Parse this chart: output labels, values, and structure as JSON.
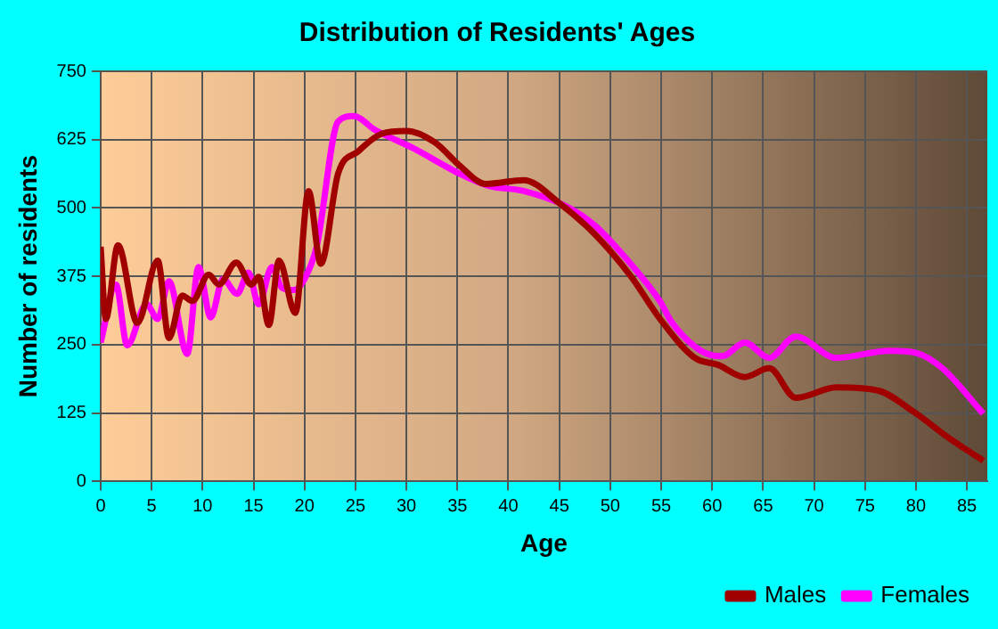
{
  "chart_data": {
    "type": "line",
    "title": "Distribution of Residents' Ages",
    "xlabel": "Age",
    "ylabel": "Number of residents",
    "xlim": [
      0,
      87
    ],
    "xticks": [
      0,
      5,
      10,
      15,
      20,
      25,
      30,
      35,
      40,
      45,
      50,
      55,
      60,
      65,
      70,
      75,
      80,
      85
    ],
    "ylim": [
      0,
      750
    ],
    "yticks": [
      0,
      125,
      250,
      375,
      500,
      625,
      750
    ],
    "grid": true,
    "legend": "bottom right",
    "marker": "none",
    "line_style": "solid",
    "series": [
      {
        "name": "Males",
        "color": "#a00000",
        "x": [
          0,
          0.5,
          1.7,
          3.6,
          5.6,
          6.7,
          8,
          9,
          10.6,
          11.6,
          13.3,
          14.8,
          15.5,
          16.5,
          17.5,
          19.1,
          20.4,
          21.6,
          23.3,
          25.3,
          27.6,
          30,
          32.8,
          35.2,
          37.8,
          41.5,
          45,
          48.5,
          52,
          54.9,
          58.3,
          60.6,
          63.2,
          65.6,
          68.2,
          72.2,
          76.3,
          79.8,
          83.2,
          86.6
        ],
        "values": [
          429,
          297,
          432,
          290,
          404,
          262,
          340,
          330,
          378,
          360,
          400,
          360,
          374,
          286,
          404,
          308,
          531,
          398,
          563,
          604,
          636,
          641,
          620,
          578,
          544,
          551,
          509,
          452,
          376,
          297,
          226,
          213,
          191,
          207,
          153,
          172,
          166,
          127,
          80,
          38
        ]
      },
      {
        "name": "Females",
        "color": "#ff00ff",
        "x": [
          0,
          1.5,
          2.6,
          4.5,
          5.6,
          6.7,
          8.5,
          9.6,
          10.8,
          12,
          13.4,
          14.5,
          15.5,
          16.8,
          17.8,
          19,
          20,
          21.2,
          23.3,
          24.8,
          27,
          30.6,
          35.2,
          38,
          41.5,
          45.6,
          48.5,
          52,
          54.9,
          56,
          58.9,
          61,
          63.2,
          65.6,
          68.2,
          72.2,
          77.4,
          80,
          82.6,
          86.6
        ],
        "values": [
          254,
          360,
          249,
          324,
          297,
          366,
          233,
          392,
          300,
          370,
          343,
          382,
          324,
          392,
          354,
          350,
          370,
          430,
          658,
          668,
          642,
          610,
          563,
          541,
          531,
          504,
          468,
          398,
          329,
          292,
          239,
          229,
          254,
          226,
          265,
          226,
          239,
          235,
          207,
          124
        ]
      }
    ]
  }
}
